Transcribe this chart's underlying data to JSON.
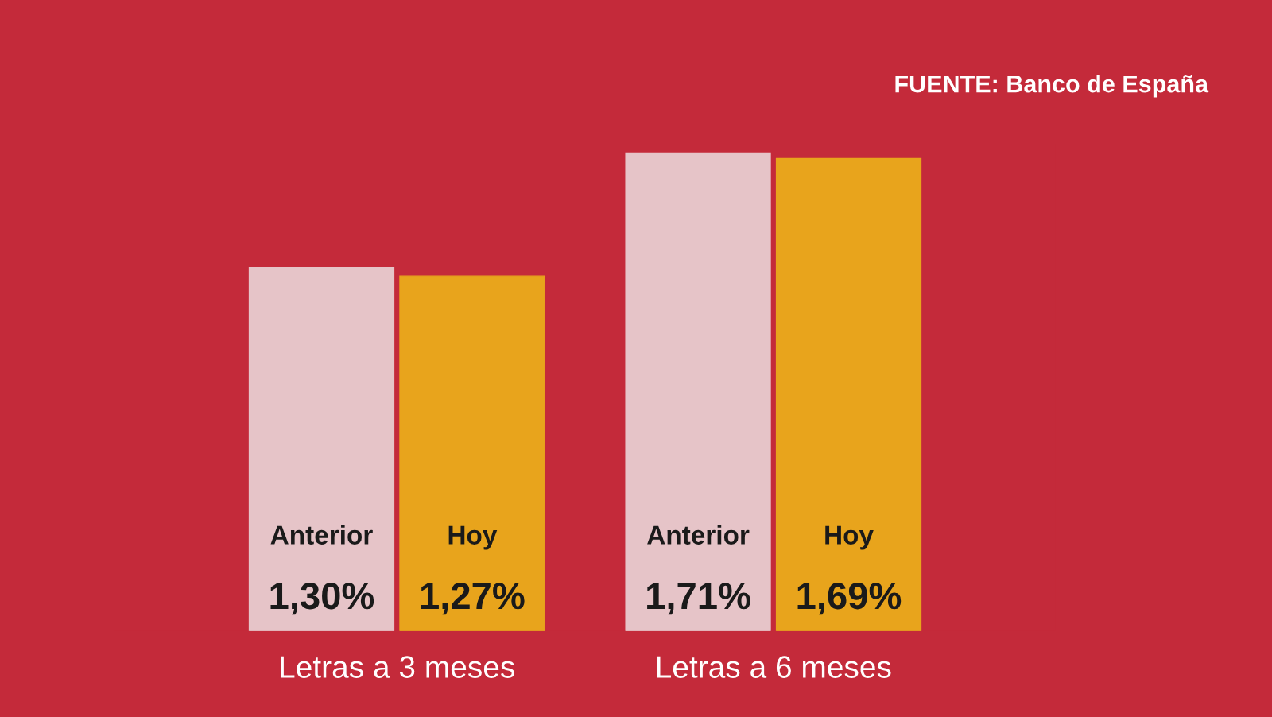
{
  "chart_data": {
    "type": "bar",
    "categories": [
      "Letras a 3 meses",
      "Letras a 6 meses"
    ],
    "series": [
      {
        "name": "Anterior",
        "color": "#e6c4c8",
        "values": [
          1.3,
          1.71
        ],
        "value_labels": [
          "1,30%",
          "1,71%"
        ]
      },
      {
        "name": "Hoy",
        "color": "#e8a41c",
        "values": [
          1.27,
          1.69
        ],
        "value_labels": [
          "1,27%",
          "1,69%"
        ]
      }
    ],
    "annotations": [
      "FUENTE: Banco de España"
    ],
    "legend": false,
    "grid": false
  }
}
